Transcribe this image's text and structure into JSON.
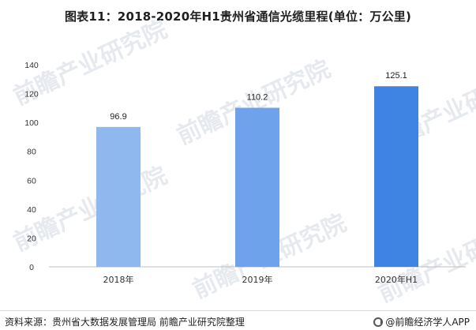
{
  "title": "图表11：2018-2020年H1贵州省通信光缆里程(单位：万公里)",
  "chart_data": {
    "type": "bar",
    "categories": [
      "2018年",
      "2019年",
      "2020年H1"
    ],
    "values": [
      96.9,
      110.2,
      125.1
    ],
    "value_labels": [
      "96.9",
      "110.2",
      "125.1"
    ],
    "ylim": [
      0,
      140
    ],
    "yticks": [
      0,
      20,
      40,
      60,
      80,
      100,
      120,
      140
    ],
    "grid": false,
    "bar_colors": [
      "#8fb8ee",
      "#6ea3ec",
      "#3f83e3"
    ],
    "xlabel": "",
    "ylabel": ""
  },
  "watermark": {
    "text": "前瞻产业研究院"
  },
  "footer": {
    "source": "资料来源：贵州省大数据发展管理局 前瞻产业研究院整理",
    "brand": "@前瞻经济学人APP",
    "brand_icon": "qianzhan-logo-icon"
  }
}
